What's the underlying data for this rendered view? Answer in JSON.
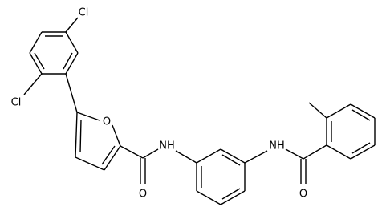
{
  "atoms": {
    "cl_top": "Cl",
    "cl_bottom": "Cl",
    "o_furan": "O",
    "o_amide1": "O",
    "nh_left": "NH",
    "nh_right": "NH",
    "o_amide2": "O"
  }
}
